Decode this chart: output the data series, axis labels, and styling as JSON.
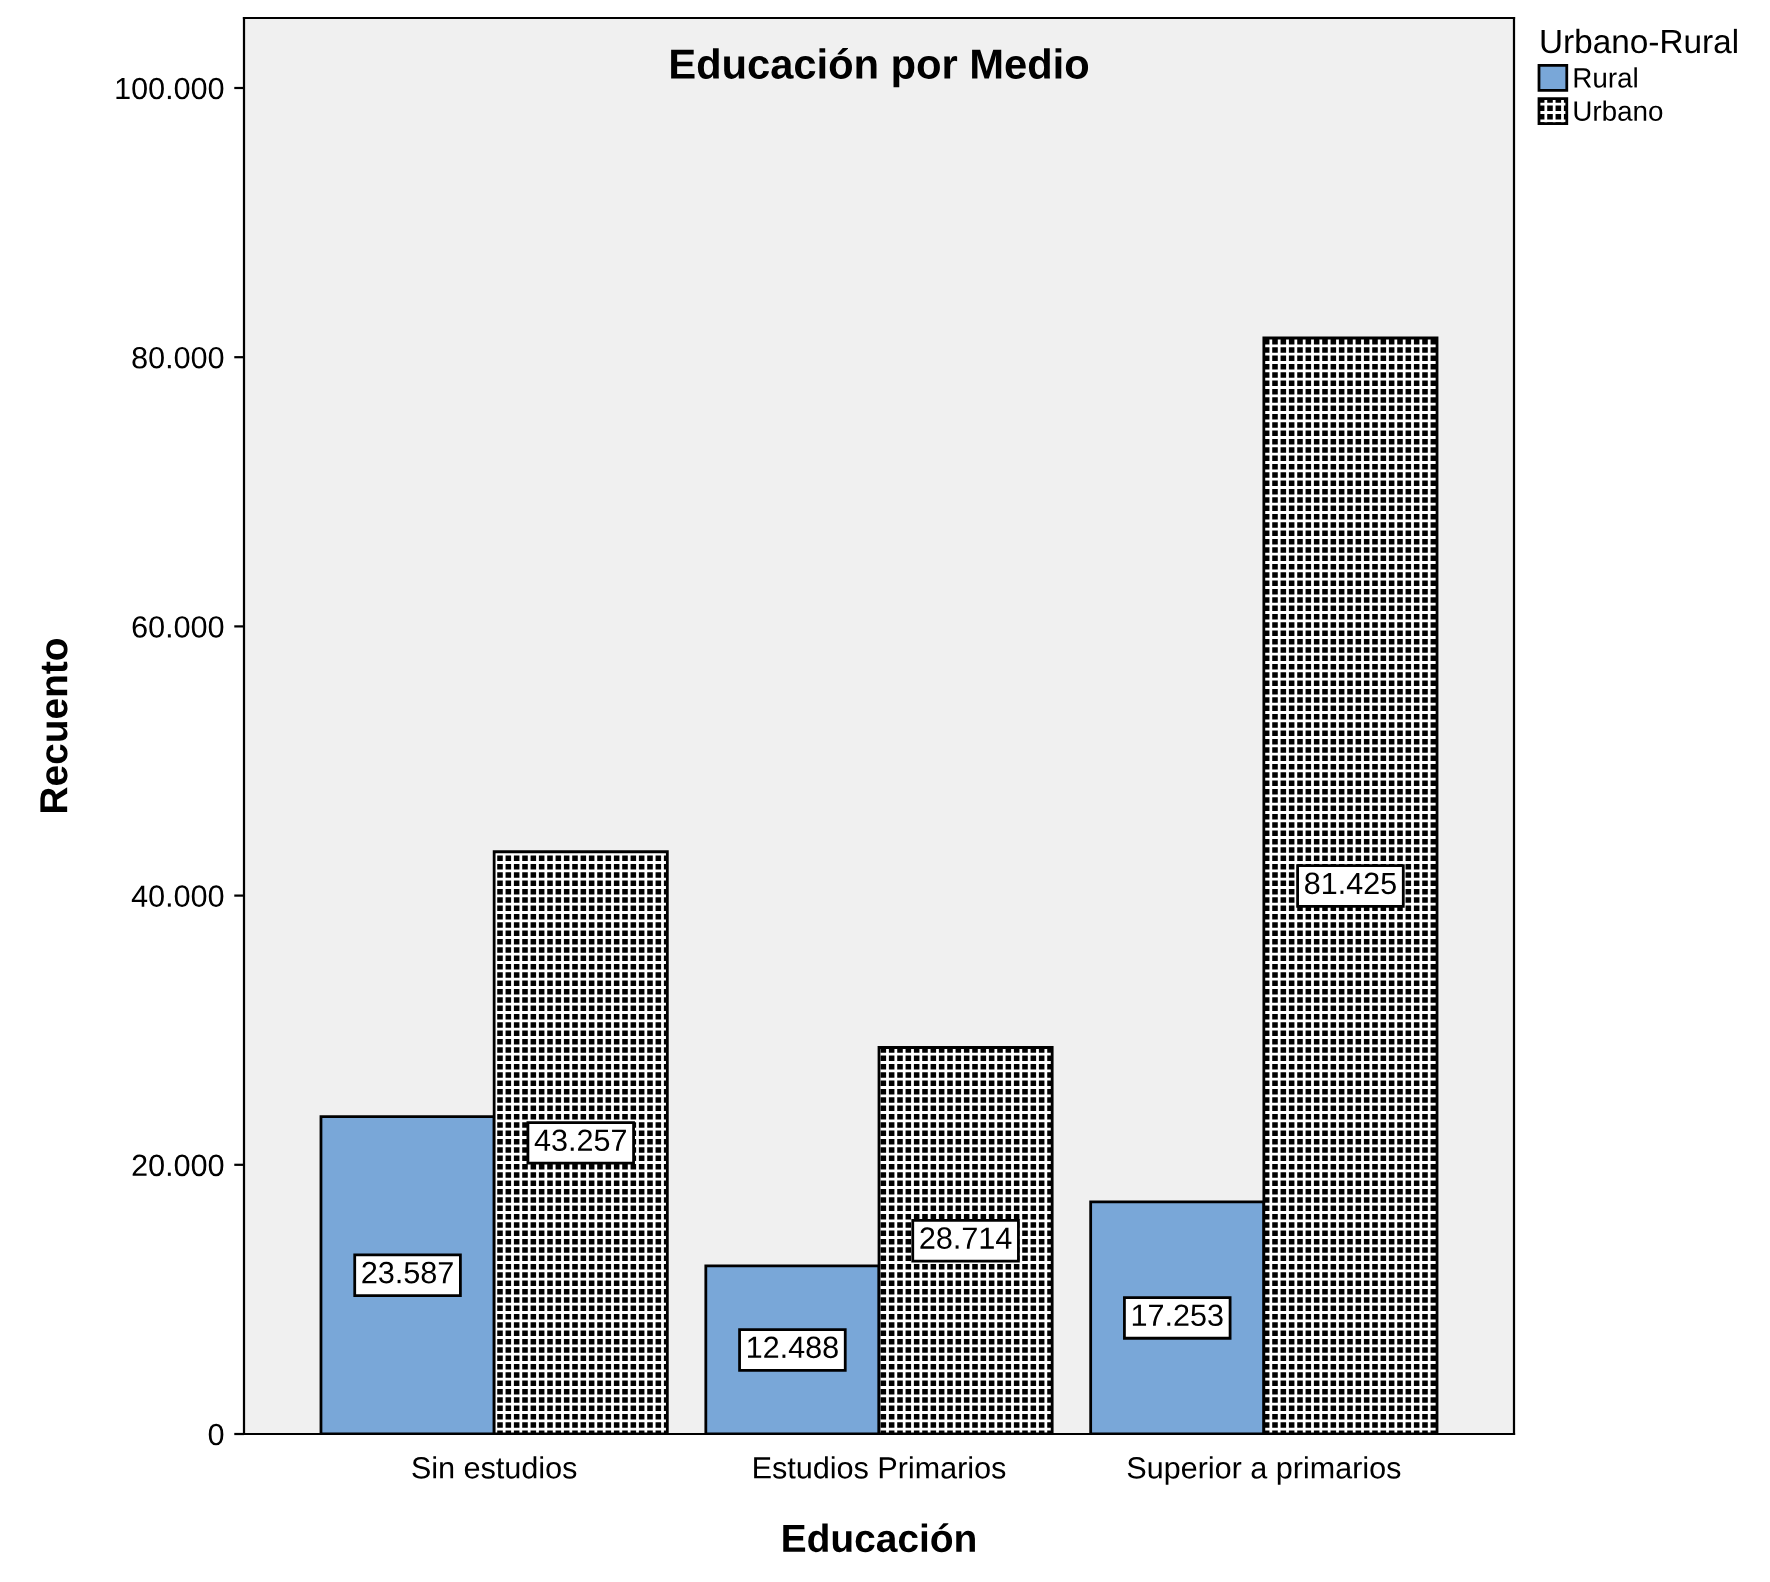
{
  "chart_data": {
    "type": "bar",
    "title": "Educación por Medio",
    "xlabel": "Educación",
    "ylabel": "Recuento",
    "legend_title": "Urbano-Rural",
    "categories": [
      "Sin estudios",
      "Estudios Primarios",
      "Superior a primarios"
    ],
    "series": [
      {
        "name": "Rural",
        "color": "#79a7d8",
        "values": [
          23587,
          12488,
          17253
        ],
        "value_labels": [
          "23.587",
          "12.488",
          "17.253"
        ]
      },
      {
        "name": "Urbano",
        "color": "#000000",
        "values": [
          43257,
          28714,
          81425
        ],
        "value_labels": [
          "43.257",
          "28.714",
          "81.425"
        ]
      }
    ],
    "ylim": [
      0,
      105200
    ],
    "yticks": [
      0,
      {
        "value": 20000,
        "label": "20.000"
      },
      {
        "value": 40000,
        "label": "40.000"
      },
      {
        "value": 60000,
        "label": "60.000"
      },
      {
        "value": 80000,
        "label": "80.000"
      },
      {
        "value": 100000,
        "label": "100.000"
      }
    ],
    "grid": false,
    "legend": "top right"
  }
}
